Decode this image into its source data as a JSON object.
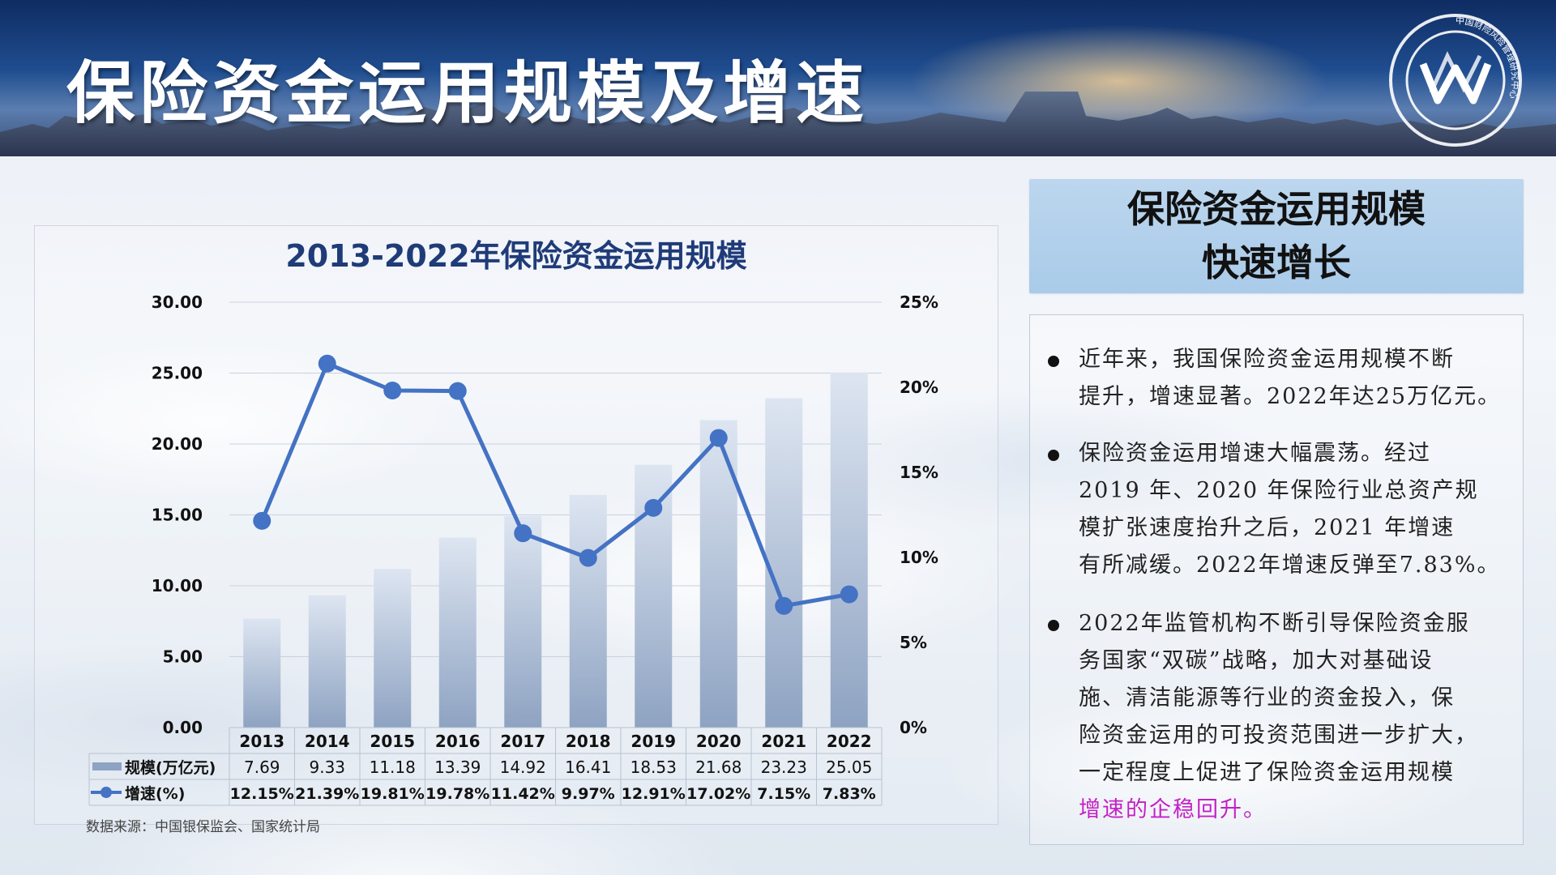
{
  "page_title": "保险资金运用规模及增速",
  "logo": {
    "name": "institution-seal-logo",
    "ring_text": "中国财险风险管理研究中心"
  },
  "summary": {
    "line1": "保险资金运用规模",
    "line2": "快速增长"
  },
  "bullets": [
    {
      "lines": [
        "近年来，我国保险资金运用规模不断",
        "提升，增速显著。2022年达25万亿元。"
      ]
    },
    {
      "lines": [
        "保险资金运用增速大幅震荡。经过",
        "2019 年、2020 年保险行业总资产规",
        "模扩张速度抬升之后，2021 年增速",
        "有所减缓。2022年增速反弹至7.83%。"
      ]
    },
    {
      "lines": [
        "2022年监管机构不断引导保险资金服",
        "务国家“双碳”战略，加大对基础设",
        "施、清洁能源等行业的资金投入，保",
        "险资金运用的可投资范围进一步扩大，",
        "一定程度上促进了保险资金运用规模"
      ],
      "highlight": "增速的企稳回升。"
    }
  ],
  "source": "数据来源：中国银保监会、国家统计局",
  "colors": {
    "line": "#4472c4",
    "bar_top": "#dde5f1",
    "bar_bottom": "#8ea3c2",
    "title": "#1f3b78",
    "highlight": "#c51fc5"
  },
  "chart_data": {
    "type": "bar",
    "title": "2013-2022年保险资金运用规模",
    "categories": [
      "2013",
      "2014",
      "2015",
      "2016",
      "2017",
      "2018",
      "2019",
      "2020",
      "2021",
      "2022"
    ],
    "series": [
      {
        "name": "规模(万亿元)",
        "type": "bar",
        "axis": "left",
        "values": [
          7.69,
          9.33,
          11.18,
          13.39,
          14.92,
          16.41,
          18.53,
          21.68,
          23.23,
          25.05
        ],
        "labels": [
          "7.69",
          "9.33",
          "11.18",
          "13.39",
          "14.92",
          "16.41",
          "18.53",
          "21.68",
          "23.23",
          "25.05"
        ]
      },
      {
        "name": "增速(%)",
        "type": "line",
        "axis": "right",
        "values": [
          12.15,
          21.39,
          19.81,
          19.78,
          11.42,
          9.97,
          12.91,
          17.02,
          7.15,
          7.83
        ],
        "labels": [
          "12.15%",
          "21.39%",
          "19.81%",
          "19.78%",
          "11.42%",
          "9.97%",
          "12.91%",
          "17.02%",
          "7.15%",
          "7.83%"
        ]
      }
    ],
    "y_left": {
      "lim": [
        0,
        30
      ],
      "ticks": [
        "0.00",
        "5.00",
        "10.00",
        "15.00",
        "20.00",
        "25.00",
        "30.00"
      ]
    },
    "y_right": {
      "lim": [
        0,
        25
      ],
      "ticks": [
        "0%",
        "5%",
        "10%",
        "15%",
        "20%",
        "25%"
      ]
    },
    "grid": true,
    "legend": "data-table"
  }
}
